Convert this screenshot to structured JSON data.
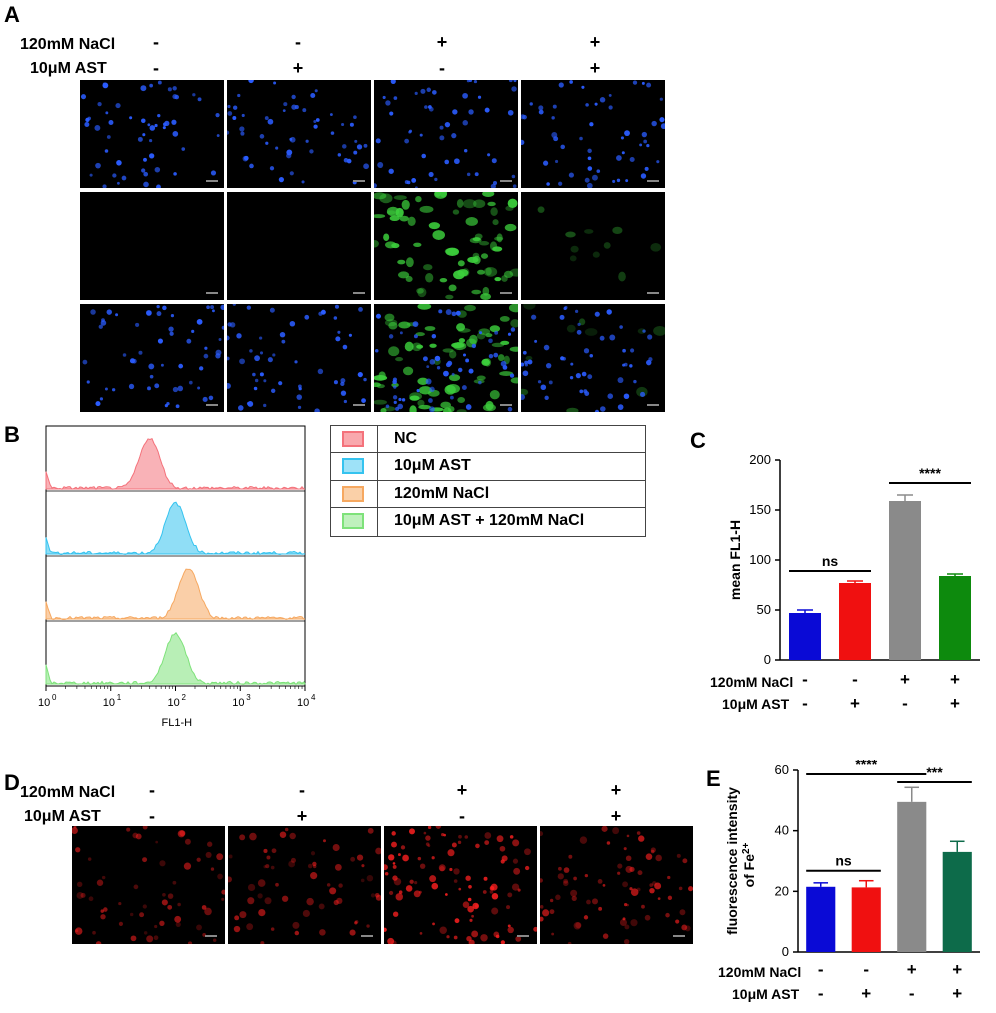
{
  "panels": {
    "A": "A",
    "B": "B",
    "C": "C",
    "D": "D",
    "E": "E"
  },
  "conditions": {
    "nacl_label": "120mM NaCl",
    "ast_label": "10μM AST",
    "nacl_signs": [
      "-",
      "-",
      "+",
      "+"
    ],
    "ast_signs": [
      "-",
      "+",
      "-",
      "+"
    ]
  },
  "panel_A": {
    "rows": [
      "blue-nuclei",
      "green-fluorescence",
      "merge"
    ],
    "green_intensity": [
      0,
      0,
      1,
      0.08
    ],
    "colors": {
      "nuclei": "#2a5cff",
      "green": "#3ccf3c",
      "background": "#000000"
    }
  },
  "panel_B": {
    "xlabel": "FL1-H",
    "ticks": [
      "10",
      "10",
      "10",
      "10",
      "10"
    ],
    "tick_exps": [
      "0",
      "1",
      "2",
      "3",
      "4"
    ],
    "legend": [
      {
        "label": "NC",
        "color": "#f4727b"
      },
      {
        "label": "10μM AST",
        "color": "#35c3ef"
      },
      {
        "label": "120mM NaCl",
        "color": "#f6a860"
      },
      {
        "label": "10μM AST + 120mM NaCl",
        "color": "#7ee27a"
      }
    ],
    "peaks_log10": [
      1.6,
      2.0,
      2.2,
      2.0
    ]
  },
  "panel_D": {
    "colors": {
      "dots": "#ff2020",
      "background": "#000000"
    },
    "red_intensity": [
      0.45,
      0.45,
      1,
      0.65
    ]
  },
  "chart_data": [
    {
      "type": "bar",
      "panel": "C",
      "categories": [
        "NC",
        "AST",
        "NaCl",
        "AST+NaCl"
      ],
      "values": [
        47,
        77,
        159,
        84
      ],
      "errors": [
        3,
        2,
        6,
        2
      ],
      "colors": [
        "#0a0ad6",
        "#f01010",
        "#8a8a8a",
        "#0d8a0d"
      ],
      "ylabel": "mean FL1-H",
      "ylim": [
        0,
        200
      ],
      "yticks": [
        0,
        50,
        100,
        150,
        200
      ],
      "significance": [
        {
          "label": "ns",
          "from": 0,
          "to": 1
        },
        {
          "label": "****",
          "from": 2,
          "to": 3
        }
      ]
    },
    {
      "type": "bar",
      "panel": "E",
      "categories": [
        "NC",
        "AST",
        "NaCl",
        "AST+NaCl"
      ],
      "values": [
        21.5,
        21.3,
        49.5,
        33
      ],
      "errors": [
        1.3,
        2.2,
        4.8,
        3.5
      ],
      "colors": [
        "#0a0ad6",
        "#f01010",
        "#8a8a8a",
        "#0d6b4a"
      ],
      "ylabel": "fluorescence intensity",
      "ylabel2": "of Fe",
      "ylabel_sup": "2+",
      "ylim": [
        0,
        60
      ],
      "yticks": [
        0,
        20,
        40,
        60
      ],
      "significance": [
        {
          "label": "ns",
          "from": 0,
          "to": 1
        },
        {
          "label": "****",
          "from": 0,
          "to": 2
        },
        {
          "label": "***",
          "from": 2,
          "to": 3
        }
      ]
    }
  ]
}
